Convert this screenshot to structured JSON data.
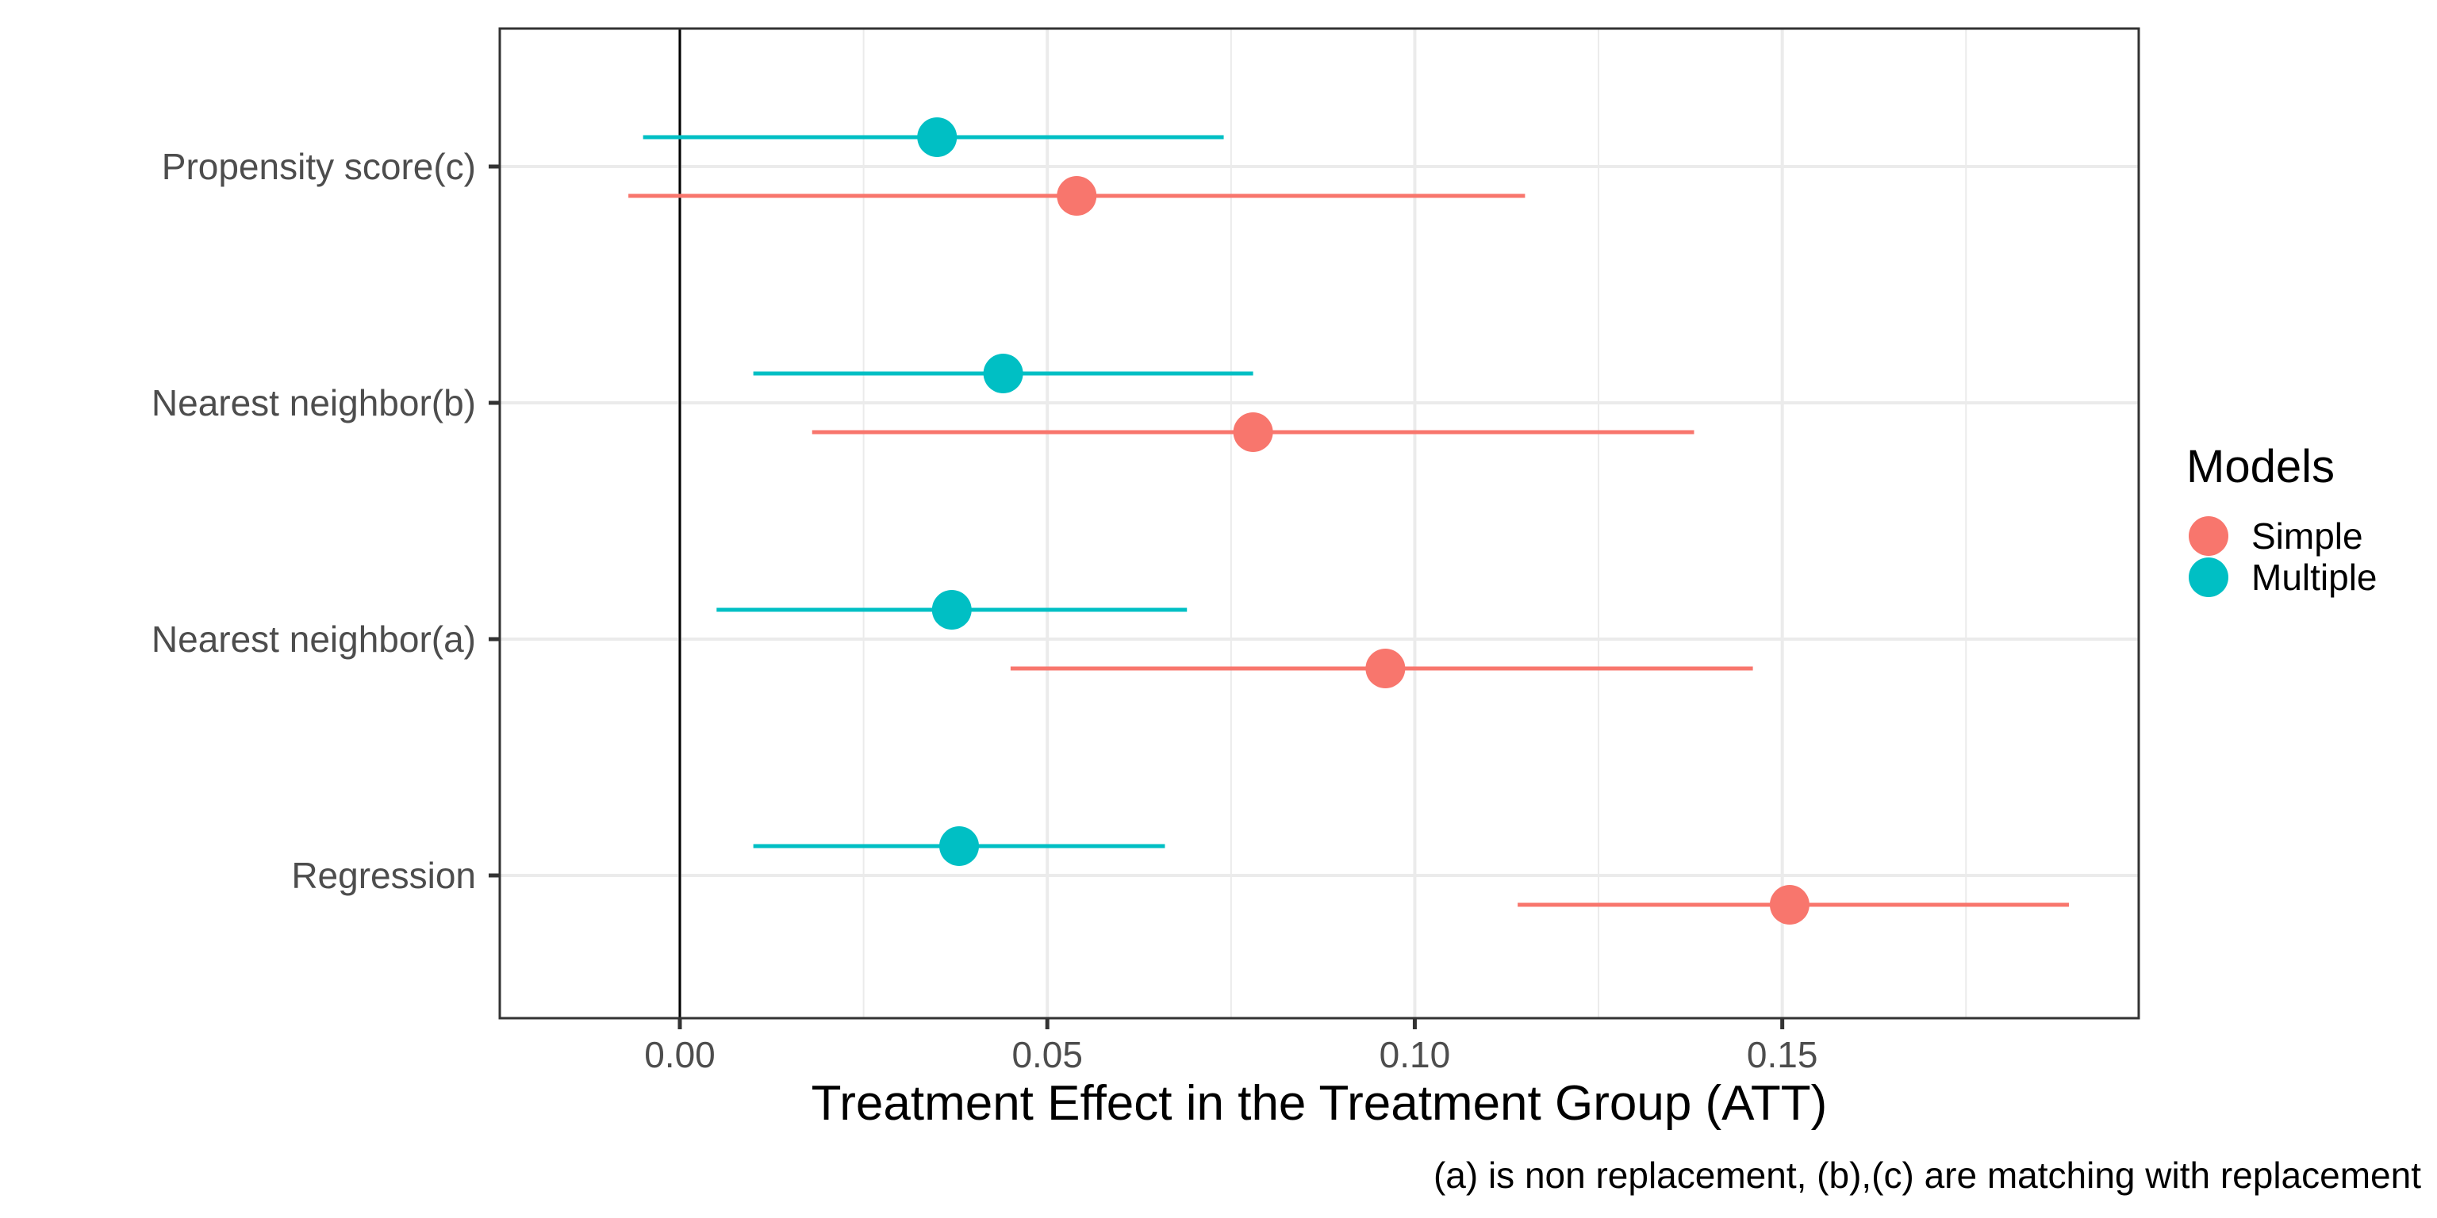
{
  "chart_data": {
    "type": "scatter",
    "subtype": "dot-and-whisker",
    "title": "",
    "xlabel": "Treatment Effect in the Treatment Group (ATT)",
    "ylabel": "",
    "caption": "(a) is non replacement, (b),(c) are matching with replacement",
    "xlim": [
      -0.0245,
      0.1985
    ],
    "x_ticks": [
      0.0,
      0.05,
      0.1,
      0.15
    ],
    "x_tick_labels": [
      "0.00",
      "0.05",
      "0.10",
      "0.15"
    ],
    "reference_line_x": 0,
    "categories": [
      "Propensity score(c)",
      "Nearest neighbor(b)",
      "Nearest neighbor(a)",
      "Regression"
    ],
    "legend": {
      "title": "Models",
      "position": "right"
    },
    "grid": true,
    "series": [
      {
        "name": "Simple",
        "color": "#F8766D",
        "points": [
          {
            "category": "Propensity score(c)",
            "estimate": 0.054,
            "low": -0.007,
            "high": 0.115
          },
          {
            "category": "Nearest neighbor(b)",
            "estimate": 0.078,
            "low": 0.018,
            "high": 0.138
          },
          {
            "category": "Nearest neighbor(a)",
            "estimate": 0.096,
            "low": 0.045,
            "high": 0.146
          },
          {
            "category": "Regression",
            "estimate": 0.151,
            "low": 0.114,
            "high": 0.189
          }
        ]
      },
      {
        "name": "Multiple",
        "color": "#00BFC4",
        "points": [
          {
            "category": "Propensity score(c)",
            "estimate": 0.035,
            "low": -0.005,
            "high": 0.074
          },
          {
            "category": "Nearest neighbor(b)",
            "estimate": 0.044,
            "low": 0.01,
            "high": 0.078
          },
          {
            "category": "Nearest neighbor(a)",
            "estimate": 0.037,
            "low": 0.005,
            "high": 0.069
          },
          {
            "category": "Regression",
            "estimate": 0.038,
            "low": 0.01,
            "high": 0.066
          }
        ]
      }
    ]
  }
}
